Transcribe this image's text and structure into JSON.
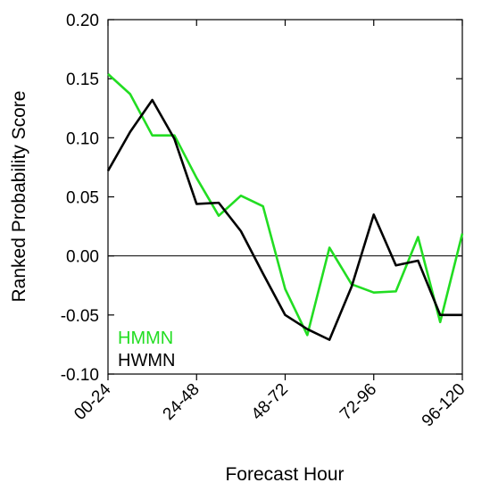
{
  "chart_data": {
    "type": "line",
    "xlabel": "Forecast Hour",
    "ylabel": "Ranked Probability Score",
    "x": [
      0,
      1,
      2,
      3,
      4,
      5,
      6,
      7,
      8,
      9,
      10,
      11,
      12,
      13,
      14,
      15,
      16
    ],
    "xlim": [
      0,
      16
    ],
    "x_ticks": [
      0,
      4,
      8,
      12,
      16
    ],
    "x_tick_labels": [
      "00-24",
      "24-48",
      "48-72",
      "72-96",
      "96-120"
    ],
    "ylim": [
      -0.1,
      0.2
    ],
    "y_ticks": [
      -0.1,
      -0.05,
      0.0,
      0.05,
      0.1,
      0.15,
      0.2
    ],
    "y_tick_labels": [
      "-0.10",
      "-0.05",
      "0.00",
      "0.05",
      "0.10",
      "0.15",
      "0.20"
    ],
    "zero_line": true,
    "grid": false,
    "legend_position": "bottom-left",
    "series": [
      {
        "name": "HMMN",
        "color": "#22dd22",
        "values": [
          0.154,
          0.137,
          0.102,
          0.102,
          0.066,
          0.034,
          0.051,
          0.042,
          -0.028,
          -0.067,
          0.007,
          -0.024,
          -0.031,
          -0.03,
          0.016,
          -0.056,
          0.019
        ]
      },
      {
        "name": "HWMN",
        "color": "#000000",
        "values": [
          0.072,
          0.105,
          0.132,
          0.099,
          0.044,
          0.045,
          0.021,
          -0.015,
          -0.05,
          -0.062,
          -0.071,
          -0.026,
          0.035,
          -0.008,
          -0.004,
          -0.05,
          -0.05
        ]
      }
    ]
  }
}
